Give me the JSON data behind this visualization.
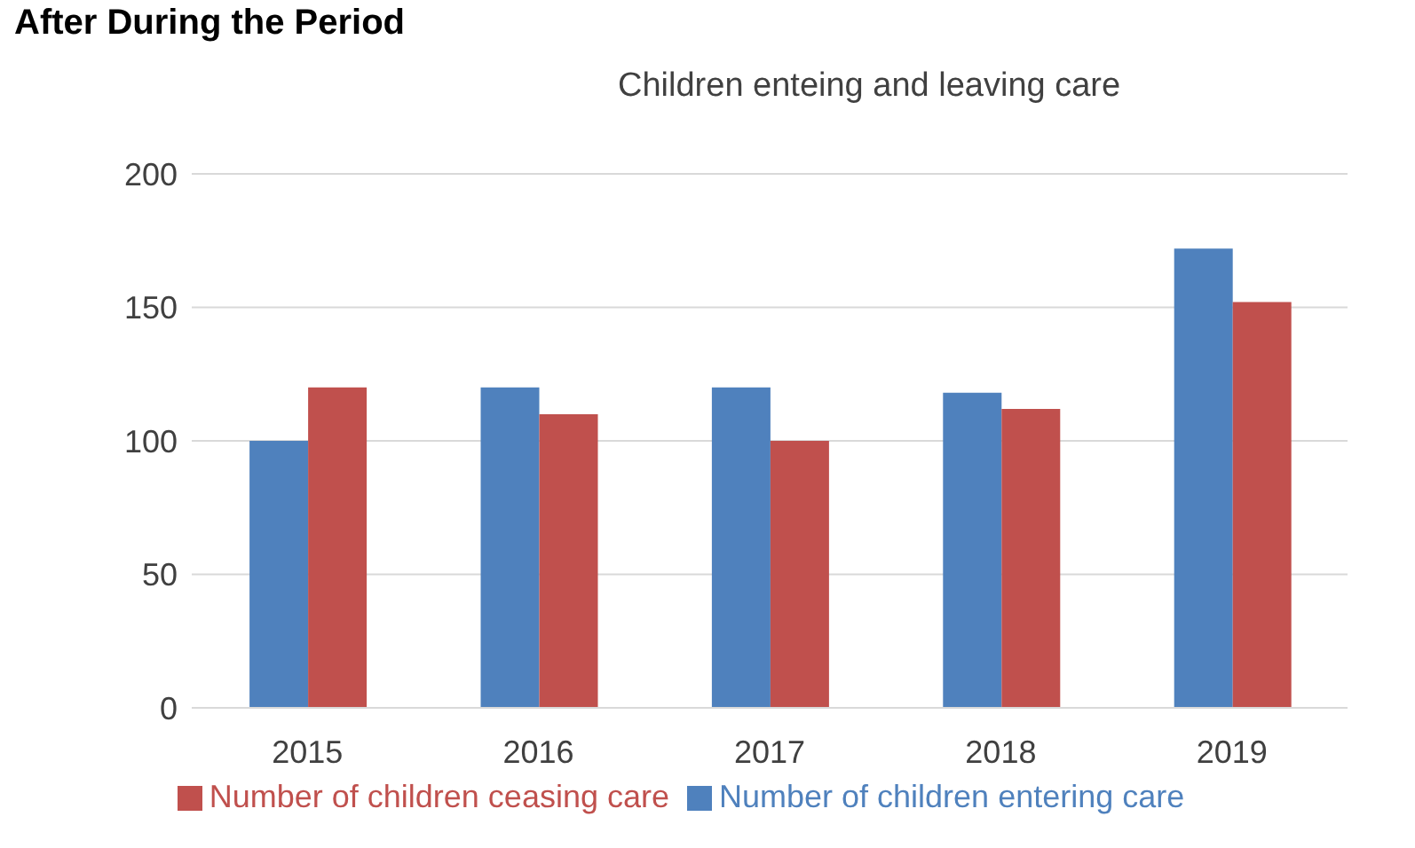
{
  "chart_data": {
    "type": "bar",
    "title": "Children enteing and leaving care",
    "annotations": [
      "After During the Period"
    ],
    "categories": [
      "2015",
      "2016",
      "2017",
      "2018",
      "2019"
    ],
    "series": [
      {
        "name": "Number of children entering care",
        "color": "#4f81bd",
        "values": [
          100,
          120,
          120,
          118,
          172
        ]
      },
      {
        "name": "Number of children ceasing care",
        "color": "#c0504d",
        "values": [
          120,
          110,
          100,
          112,
          152
        ]
      }
    ],
    "ylim": [
      0,
      200
    ],
    "yticks": [
      0,
      50,
      100,
      150,
      200
    ],
    "grid": "y",
    "legend": "bottom"
  }
}
